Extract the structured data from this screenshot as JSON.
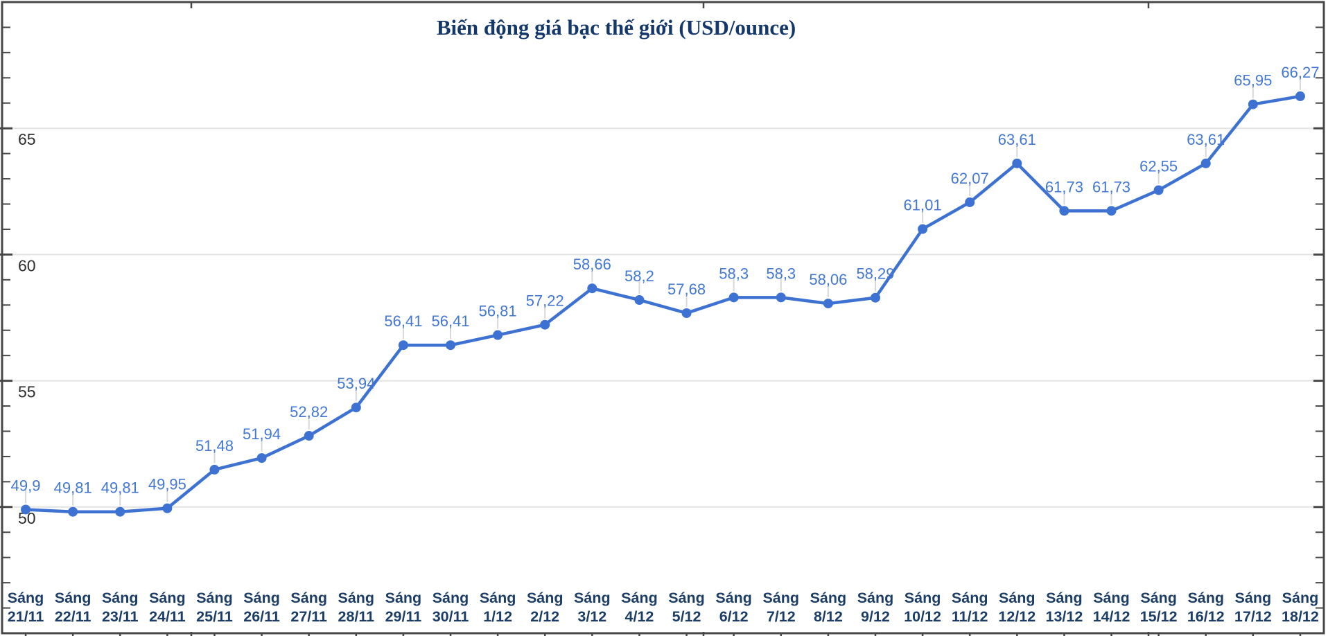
{
  "title": "Biến động giá bạc thế giới (USD/ounce)",
  "chart_data": {
    "type": "line",
    "title": "Biến động giá bạc thế giới (USD/ounce)",
    "x_label_prefix": "Sáng",
    "categories": [
      "21/11",
      "22/11",
      "23/11",
      "24/11",
      "25/11",
      "26/11",
      "27/11",
      "28/11",
      "29/11",
      "30/11",
      "1/12",
      "2/12",
      "3/12",
      "4/12",
      "5/12",
      "6/12",
      "7/12",
      "8/12",
      "9/12",
      "10/12",
      "11/12",
      "12/12",
      "13/12",
      "14/12",
      "15/12",
      "16/12",
      "17/12",
      "18/12"
    ],
    "values": [
      49.9,
      49.81,
      49.81,
      49.95,
      51.48,
      51.94,
      52.82,
      53.94,
      56.41,
      56.41,
      56.81,
      57.22,
      58.66,
      58.2,
      57.68,
      58.3,
      58.3,
      58.06,
      58.29,
      61.01,
      62.07,
      63.61,
      61.73,
      61.73,
      62.55,
      63.61,
      65.95,
      66.27
    ],
    "value_labels": [
      "49,9",
      "49,81",
      "49,81",
      "49,95",
      "51,48",
      "51,94",
      "52,82",
      "53,94",
      "56,41",
      "56,41",
      "56,81",
      "57,22",
      "58,66",
      "58,2",
      "57,68",
      "58,3",
      "58,3",
      "58,06",
      "58,29",
      "61,01",
      "62,07",
      "63,61",
      "61,73",
      "61,73",
      "62,55",
      "63,61",
      "65,95",
      "66,27"
    ],
    "ylim": [
      45,
      70
    ],
    "y_tick_labels": [
      "50",
      "55",
      "60",
      "65"
    ],
    "y_tick_values": [
      50,
      55,
      60,
      65
    ],
    "minor_tick_step": 1,
    "grid": true,
    "legend_position": "none",
    "colors": {
      "line": "#3E72D2",
      "point": "#3E72D2",
      "value_label": "#4377D4",
      "x_label": "#1C3E66",
      "y_label": "#2e2e2e",
      "title": "#15386B",
      "gridline": "#e3e3e3",
      "frame": "#474747",
      "leader_stem": "#d8d8d8"
    }
  }
}
